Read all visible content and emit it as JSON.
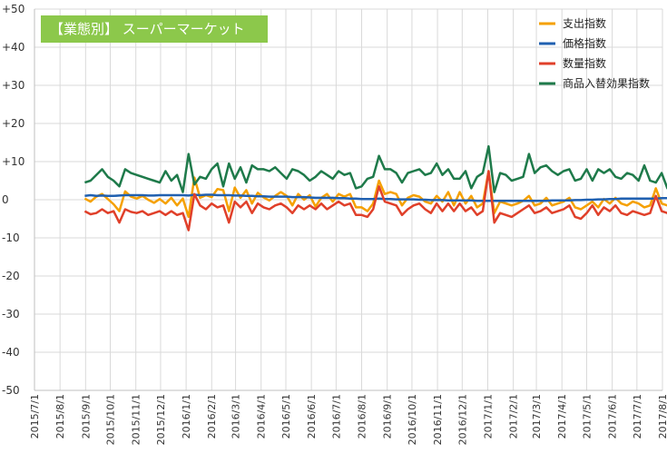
{
  "chart_data": {
    "type": "line",
    "title": "【業態別】 スーパーマーケット",
    "xlabel": "",
    "ylabel": "",
    "ylim": [
      -50,
      50
    ],
    "y_ticks": [
      "-50",
      "-40",
      "-30",
      "-20",
      "-10",
      "0",
      "+10",
      "+20",
      "+30",
      "+40",
      "+50"
    ],
    "x_ticks": [
      "2015/7/1",
      "2015/8/1",
      "2015/9/1",
      "2015/10/1",
      "2015/11/1",
      "2015/12/1",
      "2016/1/1",
      "2016/2/1",
      "2016/3/1",
      "2016/4/1",
      "2016/5/1",
      "2016/6/1",
      "2016/7/1",
      "2016/8/1",
      "2016/9/1",
      "2016/10/1",
      "2016/11/1",
      "2016/12/1",
      "2017/1/1",
      "2017/2/1",
      "2017/3/1",
      "2017/4/1",
      "2017/5/1",
      "2017/6/1",
      "2017/7/1",
      "2017/8/1"
    ],
    "x_start": "2015-07-01",
    "x_end": "2017-08-01",
    "x_point_spacing": "weekly",
    "x_first_point": "2015-08-31",
    "grid": true,
    "legend": "top-right",
    "series": [
      {
        "name": "支出指数",
        "color": "#f5a000",
        "values": [
          0.3,
          -0.5,
          0.8,
          1.5,
          0.2,
          -1.2,
          -3.0,
          2.2,
          0.8,
          0.3,
          1.0,
          0.0,
          -0.8,
          0.2,
          -1.0,
          0.5,
          -1.5,
          0.3,
          -4.5,
          5.8,
          0.5,
          1.2,
          0.7,
          2.8,
          2.5,
          -3.0,
          3.2,
          0.5,
          2.5,
          -1.0,
          1.8,
          0.6,
          -0.2,
          1.0,
          2.0,
          1.0,
          -1.5,
          1.5,
          0.0,
          1.2,
          -1.8,
          0.5,
          1.5,
          -0.5,
          1.5,
          0.8,
          1.5,
          -2.0,
          -2.0,
          -3.0,
          -1.0,
          5.0,
          1.5,
          2.0,
          1.5,
          -1.5,
          0.5,
          1.2,
          0.8,
          -0.5,
          -1.0,
          1.0,
          -0.5,
          2.0,
          -1.5,
          2.0,
          -1.0,
          1.0,
          -2.0,
          -1.0,
          7.5,
          -3.5,
          -0.5,
          -1.0,
          -1.5,
          -1.0,
          -0.3,
          1.0,
          -1.5,
          -1.0,
          0.5,
          -1.5,
          -1.0,
          -0.5,
          0.5,
          -2.0,
          -2.5,
          -1.5,
          -0.5,
          -2.0,
          0.2,
          -1.0,
          0.5,
          -1.0,
          -1.5,
          -0.5,
          -1.0,
          -2.0,
          -1.5,
          3.0,
          -1.0,
          -1.5,
          -3.0
        ]
      },
      {
        "name": "価格指数",
        "color": "#2060b0",
        "values": [
          1.0,
          1.2,
          1.0,
          1.1,
          1.0,
          1.0,
          1.1,
          1.2,
          1.2,
          1.2,
          1.2,
          1.1,
          1.1,
          1.2,
          1.2,
          1.2,
          1.2,
          1.2,
          1.1,
          1.3,
          1.2,
          1.3,
          1.3,
          1.2,
          1.2,
          1.2,
          1.1,
          1.1,
          1.0,
          1.0,
          0.9,
          0.9,
          0.8,
          0.8,
          0.8,
          0.8,
          0.7,
          0.7,
          0.7,
          0.6,
          0.5,
          0.5,
          0.5,
          0.5,
          0.4,
          0.4,
          0.3,
          0.3,
          0.2,
          0.2,
          0.2,
          0.3,
          0.2,
          0.2,
          0.1,
          0.1,
          0.1,
          0.1,
          0.0,
          0.0,
          -0.1,
          -0.1,
          -0.1,
          -0.2,
          -0.2,
          -0.2,
          -0.2,
          -0.2,
          -0.3,
          -0.3,
          -0.3,
          -0.3,
          -0.3,
          -0.3,
          -0.3,
          -0.3,
          -0.3,
          -0.3,
          -0.3,
          -0.3,
          -0.3,
          -0.2,
          -0.2,
          -0.2,
          -0.2,
          -0.1,
          -0.1,
          0.0,
          0.0,
          0.1,
          0.1,
          0.2,
          0.2,
          0.3,
          0.3,
          0.3,
          0.3,
          0.3,
          0.3,
          0.3,
          0.4,
          0.4,
          0.5
        ]
      },
      {
        "name": "数量指数",
        "color": "#e0402a",
        "values": [
          -3.0,
          -3.8,
          -3.5,
          -2.5,
          -3.5,
          -3.0,
          -6.0,
          -2.5,
          -3.2,
          -3.5,
          -3.0,
          -4.0,
          -3.5,
          -3.0,
          -4.0,
          -3.0,
          -4.0,
          -3.5,
          -8.0,
          1.5,
          -1.5,
          -2.5,
          -1.0,
          -2.0,
          -1.5,
          -6.0,
          -0.5,
          -2.0,
          -0.5,
          -3.5,
          -1.0,
          -2.0,
          -2.5,
          -1.5,
          -1.0,
          -2.0,
          -3.5,
          -1.5,
          -2.5,
          -1.5,
          -2.5,
          -1.0,
          -2.5,
          -1.5,
          -0.5,
          -1.5,
          -1.0,
          -4.0,
          -4.0,
          -4.5,
          -2.5,
          3.5,
          -0.5,
          -1.0,
          -1.5,
          -4.0,
          -2.5,
          -1.5,
          -1.0,
          -2.5,
          -3.5,
          -1.0,
          -3.0,
          -1.0,
          -3.0,
          -1.0,
          -3.0,
          -2.0,
          -4.0,
          -3.0,
          7.5,
          -6.0,
          -3.5,
          -4.0,
          -4.5,
          -3.5,
          -2.5,
          -1.5,
          -3.5,
          -3.0,
          -2.0,
          -3.5,
          -3.0,
          -2.5,
          -1.5,
          -4.5,
          -5.0,
          -3.5,
          -1.5,
          -4.0,
          -2.0,
          -3.0,
          -1.5,
          -3.5,
          -4.0,
          -3.0,
          -3.5,
          -4.0,
          -3.5,
          1.0,
          -3.0,
          -3.5,
          -5.5
        ]
      },
      {
        "name": "商品入替効果指数",
        "color": "#1e7a4a",
        "values": [
          4.5,
          5.0,
          6.5,
          8.0,
          6.0,
          5.0,
          3.5,
          8.0,
          7.0,
          6.5,
          6.0,
          5.5,
          5.0,
          4.5,
          7.5,
          5.0,
          6.5,
          2.0,
          12.0,
          4.0,
          6.0,
          5.5,
          8.0,
          9.5,
          3.5,
          9.5,
          5.5,
          8.5,
          4.5,
          9.0,
          8.0,
          8.0,
          7.5,
          8.5,
          7.0,
          5.5,
          8.0,
          7.5,
          6.5,
          5.0,
          6.0,
          7.5,
          6.5,
          5.5,
          7.5,
          6.5,
          7.0,
          3.0,
          3.5,
          5.5,
          6.0,
          11.5,
          8.0,
          8.0,
          7.0,
          4.5,
          7.0,
          7.5,
          8.0,
          6.5,
          7.0,
          9.5,
          6.5,
          8.0,
          5.5,
          5.5,
          7.5,
          3.0,
          6.0,
          7.0,
          14.0,
          2.0,
          7.0,
          6.5,
          5.0,
          5.5,
          6.0,
          12.0,
          7.0,
          8.5,
          9.0,
          7.5,
          6.5,
          7.5,
          8.0,
          5.0,
          5.5,
          8.0,
          5.0,
          8.0,
          7.0,
          8.0,
          6.0,
          5.5,
          7.0,
          6.5,
          5.0,
          9.0,
          5.0,
          4.5,
          7.0,
          3.0,
          3.0
        ]
      }
    ]
  }
}
